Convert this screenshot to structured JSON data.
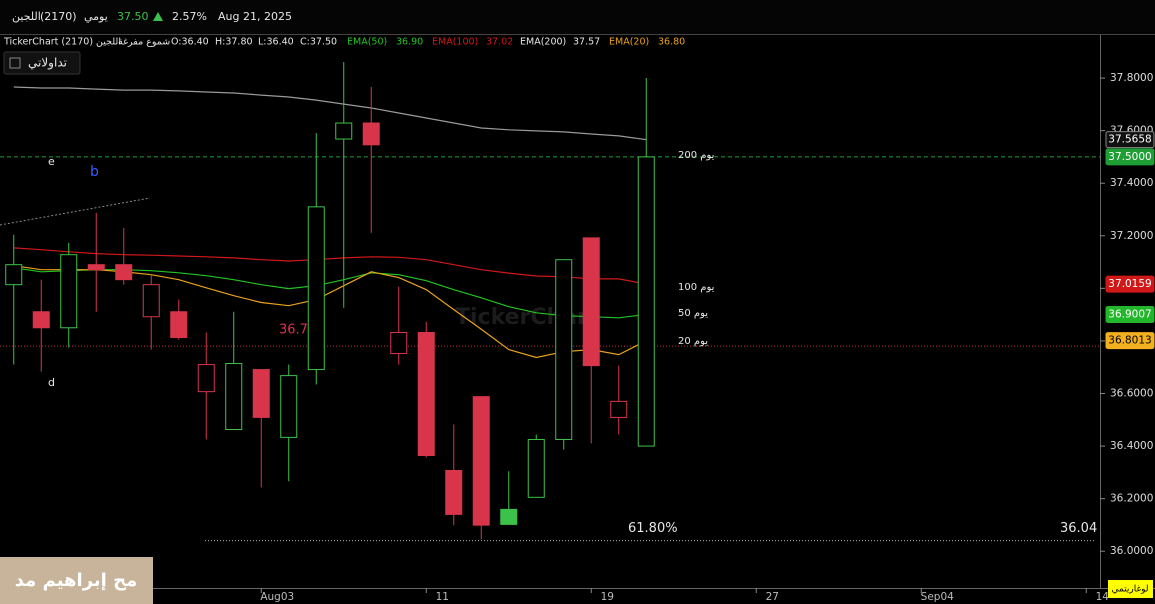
{
  "header": {
    "name": "اللجين",
    "code": "(2170)",
    "period": "يومي",
    "price": "37.50",
    "change": "2.57%",
    "date": "Aug 21, 2025"
  },
  "toolbar": {
    "source": "TickerChart اللجين (2170)",
    "chart_style": "شموع مفرغة",
    "open": "O:36.40",
    "high": "H:37.80",
    "low": "L:36.40",
    "close": "C:37.50",
    "button": "تداولاتي"
  },
  "watermark": "TickerChart",
  "author_overlay": "مح إبراهيم مد",
  "chart_data": {
    "type": "candlestick",
    "x": [
      0,
      1,
      2,
      3,
      4,
      5,
      6,
      7,
      8,
      9,
      10,
      11,
      12,
      13,
      14,
      15,
      16,
      17,
      18,
      19,
      20,
      21,
      22,
      23
    ],
    "candles": {
      "open": [
        37.014,
        36.911,
        36.85,
        37.09,
        37.09,
        36.892,
        36.911,
        36.607,
        36.463,
        36.691,
        36.433,
        36.691,
        37.568,
        37.629,
        36.752,
        36.832,
        36.307,
        36.588,
        36.159,
        36.205,
        36.425,
        37.192,
        36.509,
        36.4
      ],
      "high": [
        37.204,
        37.033,
        37.173,
        37.287,
        37.23,
        37.052,
        36.957,
        36.832,
        36.911,
        36.691,
        36.71,
        37.591,
        37.861,
        37.766,
        37.006,
        36.873,
        36.482,
        36.588,
        36.304,
        36.444,
        37.109,
        37.192,
        36.706,
        37.8
      ],
      "low": [
        36.71,
        36.683,
        36.775,
        36.911,
        37.014,
        36.767,
        36.805,
        36.425,
        36.463,
        36.243,
        36.266,
        36.634,
        36.926,
        37.211,
        36.71,
        36.357,
        36.099,
        36.045,
        36.102,
        36.205,
        36.387,
        36.41,
        36.444,
        36.4
      ],
      "close": [
        37.09,
        36.85,
        37.128,
        37.071,
        37.033,
        37.014,
        36.813,
        36.71,
        36.714,
        36.509,
        36.668,
        37.31,
        37.629,
        37.546,
        36.832,
        36.364,
        36.14,
        36.099,
        36.102,
        36.425,
        37.109,
        36.706,
        36.57,
        37.5
      ]
    },
    "up_color": "#3cc24a",
    "down_color": "#d8344a",
    "series": [
      {
        "name": "EMA(50)",
        "last_label": "36.90",
        "tag": "يوم 50",
        "color": "#22c322",
        "values": [
          37.078,
          37.063,
          37.067,
          37.071,
          37.071,
          37.067,
          37.059,
          37.048,
          37.033,
          37.014,
          36.999,
          37.01,
          37.033,
          37.059,
          37.052,
          37.029,
          36.995,
          36.964,
          36.93,
          36.907,
          36.896,
          36.892,
          36.888,
          36.901
        ]
      },
      {
        "name": "EMA(100)",
        "last_label": "37.02",
        "tag": "يوم 100",
        "color": "#d01818",
        "values": [
          37.154,
          37.147,
          37.139,
          37.132,
          37.128,
          37.126,
          37.123,
          37.12,
          37.116,
          37.109,
          37.104,
          37.109,
          37.116,
          37.12,
          37.118,
          37.109,
          37.09,
          37.071,
          37.058,
          37.047,
          37.044,
          37.036,
          37.036,
          37.016
        ]
      },
      {
        "name": "EMA(200)",
        "last_label": "37.57",
        "tag": "يوم 200",
        "color": "#9a9a9a",
        "values": [
          37.766,
          37.762,
          37.762,
          37.758,
          37.754,
          37.754,
          37.751,
          37.747,
          37.743,
          37.735,
          37.728,
          37.716,
          37.701,
          37.686,
          37.667,
          37.648,
          37.629,
          37.61,
          37.603,
          37.599,
          37.595,
          37.587,
          37.58,
          37.566
        ]
      },
      {
        "name": "EMA(20)",
        "last_label": "36.80",
        "tag": "يوم 20",
        "color": "#e8a21c",
        "values": [
          37.086,
          37.071,
          37.071,
          37.071,
          37.063,
          37.052,
          37.033,
          37.002,
          36.972,
          36.946,
          36.934,
          36.957,
          37.01,
          37.063,
          37.041,
          36.995,
          36.919,
          36.844,
          36.767,
          36.737,
          36.759,
          36.767,
          36.748,
          36.801
        ]
      }
    ],
    "xlim": [
      -0.5,
      39.5
    ],
    "xticks": [
      {
        "value": 9,
        "label": "Aug03"
      },
      {
        "value": 15,
        "label": "11"
      },
      {
        "value": 21,
        "label": "19"
      },
      {
        "value": 27,
        "label": "27"
      },
      {
        "value": 33,
        "label": "Sep04"
      },
      {
        "value": 39,
        "label": "14"
      }
    ],
    "ylim": [
      35.86,
      37.96
    ],
    "yticks": [
      {
        "value": 37.8,
        "label": "37.8000"
      },
      {
        "value": 37.6,
        "label": "37.6000"
      },
      {
        "value": 37.4,
        "label": "37.4000"
      },
      {
        "value": 37.2,
        "label": "37.2000"
      },
      {
        "value": 37.0,
        "label": "37.0000"
      },
      {
        "value": 36.8,
        "label": "36.8000"
      },
      {
        "value": 36.6,
        "label": "36.6000"
      },
      {
        "value": 36.4,
        "label": "36.4000"
      },
      {
        "value": 36.2,
        "label": "36.2000"
      },
      {
        "value": 36.0,
        "label": "36.0000"
      }
    ],
    "price_tags": [
      {
        "value": 37.5658,
        "label": "37.5658",
        "color": "#111111",
        "text_color": "#ffffff"
      },
      {
        "value": 37.5,
        "label": "37.5000",
        "color": "#1f9e35",
        "text_color": "#ffffff"
      },
      {
        "value": 37.0159,
        "label": "37.0159",
        "color": "#d01818",
        "text_color": "#ffffff"
      },
      {
        "value": 36.9007,
        "label": "36.9007",
        "color": "#22b62a",
        "text_color": "#ffffff"
      },
      {
        "value": 36.8013,
        "label": "36.8013",
        "color": "#f2b01e",
        "text_color": "#000000"
      }
    ],
    "annotations": {
      "support": 36.78,
      "fib_label": "61.80%",
      "fib_level": 36.04,
      "wave_labels": [
        "e",
        "b",
        "d"
      ]
    },
    "scale_label": "لوغاريتمي"
  }
}
